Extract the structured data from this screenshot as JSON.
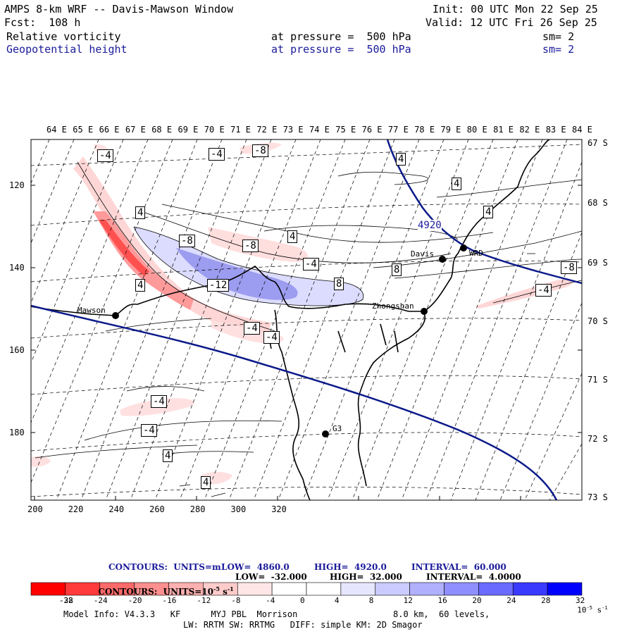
{
  "header": {
    "title": "AMPS 8-km WRF -- Davis-Mawson Window",
    "init": "Init: 00 UTC Mon 22 Sep 25",
    "fcst": "Fcst:  108 h",
    "valid": "Valid: 12 UTC Fri 26 Sep 25",
    "fields": [
      {
        "name": "Relative vorticity",
        "level": "at pressure =  500 hPa",
        "sm": "sm= 2"
      },
      {
        "name": "Geopotential height",
        "level": "at pressure =  500 hPa",
        "sm": "sm= 2"
      }
    ]
  },
  "axes": {
    "top_lon": [
      "64 E",
      "65 E",
      "66 E",
      "67 E",
      "68 E",
      "69 E",
      "70 E",
      "71 E",
      "72 E",
      "73 E",
      "74 E",
      "75 E",
      "76 E",
      "77 E",
      "78 E",
      "79 E",
      "80 E",
      "81 E",
      "82 E",
      "83 E",
      "84 E"
    ],
    "right_lat": [
      "67 S",
      "68 S",
      "69 S",
      "70 S",
      "71 S",
      "72 S",
      "73 S"
    ],
    "left_y": [
      "120",
      "140",
      "160",
      "180"
    ],
    "bottom_x": [
      "200",
      "220",
      "240",
      "260",
      "280",
      "300",
      "320"
    ]
  },
  "stations": [
    {
      "name": "Mawson"
    },
    {
      "name": "Davis"
    },
    {
      "name": "WRD"
    },
    {
      "name": "Zhongshan"
    },
    {
      "name": "G3"
    }
  ],
  "contour_labels": {
    "height": "4920",
    "vorticity": [
      {
        "v": "-4"
      },
      {
        "v": "-4"
      },
      {
        "v": "-8"
      },
      {
        "v": "4"
      },
      {
        "v": "4"
      },
      {
        "v": "4"
      },
      {
        "v": "4"
      },
      {
        "v": "4"
      },
      {
        "v": "-8"
      },
      {
        "v": "-8"
      },
      {
        "v": "-4"
      },
      {
        "v": "8"
      },
      {
        "v": "-12"
      },
      {
        "v": "8"
      },
      {
        "v": "4"
      },
      {
        "v": "-8"
      },
      {
        "v": "-4"
      },
      {
        "v": "-4"
      },
      {
        "v": "4"
      },
      {
        "v": "-4"
      },
      {
        "v": "-4"
      },
      {
        "v": "4"
      },
      {
        "v": "4"
      },
      {
        "v": "-4"
      }
    ]
  },
  "footer": {
    "c1_units": "CONTOURS:  UNITS=m",
    "c1_low": "LOW=  4860.0",
    "c1_high": "HIGH=  4920.0",
    "c1_int": "INTERVAL=  60.000",
    "c2_units": "CONTOURS:  UNITS=10",
    "c2_exp": "-5",
    "c2_s": " s",
    "c2_sexp": "-1",
    "c2_low": "LOW=  -32.000",
    "c2_high": "HIGH=  32.000",
    "c2_int": "INTERVAL=  4.0000",
    "model": "Model Info: V4.3.3   KF      MYJ PBL  Morrison",
    "res": "8.0 km,  60 levels,",
    "phys": "LW: RRTM SW: RRTMG   DIFF: simple KM: 2D Smagor"
  },
  "colorbar": {
    "colors": [
      "#ff0000",
      "#ff3a3a",
      "#ff6a6a",
      "#ff8f8f",
      "#ffb0b0",
      "#ffcbcb",
      "#ffe6e6",
      "#ffffff",
      "#ffffff",
      "#e6e6ff",
      "#cbcbff",
      "#b0b0ff",
      "#8f8fff",
      "#6a6aff",
      "#3a3aff",
      "#0000ff"
    ],
    "ticks": [
      "-32",
      "-28",
      "-24",
      "-20",
      "-16",
      "-12",
      "-8",
      "-4",
      "0",
      "4",
      "8",
      "12",
      "16",
      "20",
      "24",
      "28",
      "32"
    ],
    "unit": "10",
    "unit_exp": "-5",
    "unit_s": " s",
    "unit_sexp": "-1"
  }
}
